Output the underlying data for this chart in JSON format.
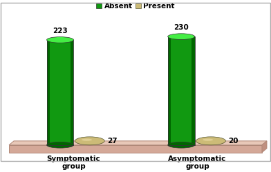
{
  "groups": [
    "Symptomatic\ngroup",
    "Asymptomatic\ngroup"
  ],
  "absent_values": [
    223,
    230
  ],
  "present_values": [
    27,
    20
  ],
  "absent_color_light": "#22CC22",
  "absent_color_mid": "#119911",
  "absent_color_dark": "#006600",
  "absent_top_light": "#44EE44",
  "present_color_light": "#CCBB77",
  "present_color_mid": "#BBAA55",
  "present_color_dark": "#998833",
  "floor_face": "#D4A898",
  "floor_top": "#E8C8B8",
  "floor_edge": "#B08878",
  "bg_color": "#FFFFFF",
  "chart_bg": "#F8F8F8",
  "border_color": "#AAAAAA",
  "legend_absent": "Absent",
  "legend_present": "Present",
  "label_fontsize": 7.5,
  "tick_fontsize": 7.5,
  "legend_fontsize": 7.5
}
